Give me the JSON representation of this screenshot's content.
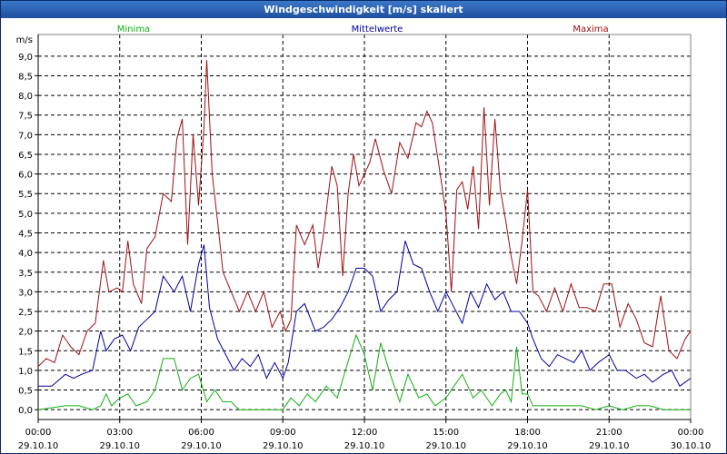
{
  "window": {
    "title": "Windgeschwindigkeit [m/s] skaliert"
  },
  "chart_data": {
    "type": "line",
    "title": "Windgeschwindigkeit [m/s] skaliert",
    "ylabel": "m/s",
    "ylim": [
      -0.25,
      9.25
    ],
    "xlim": [
      0,
      24
    ],
    "yticks": [
      "0,0",
      "0,5",
      "1,0",
      "1,5",
      "2,0",
      "2,5",
      "3,0",
      "3,5",
      "4,0",
      "4,5",
      "5,0",
      "5,5",
      "6,0",
      "6,5",
      "7,0",
      "7,5",
      "8,0",
      "8,5",
      "9,0"
    ],
    "xticks": [
      {
        "time": "00:00",
        "date": "29.10.10"
      },
      {
        "time": "03:00",
        "date": "29.10.10"
      },
      {
        "time": "06:00",
        "date": "29.10.10"
      },
      {
        "time": "09:00",
        "date": "29.10.10"
      },
      {
        "time": "12:00",
        "date": "29.10.10"
      },
      {
        "time": "15:00",
        "date": "29.10.10"
      },
      {
        "time": "18:00",
        "date": "29.10.10"
      },
      {
        "time": "21:00",
        "date": "29.10.10"
      },
      {
        "time": "00:00",
        "date": "30.10.10"
      }
    ],
    "legend": [
      {
        "name": "Minima",
        "color": "#10b010"
      },
      {
        "name": "Mittelwerte",
        "color": "#0000a0"
      },
      {
        "name": "Maxima",
        "color": "#a01010"
      }
    ],
    "series": [
      {
        "name": "Minima",
        "color": "#10b010",
        "points": [
          [
            0,
            0
          ],
          [
            1,
            0.1
          ],
          [
            1.5,
            0.1
          ],
          [
            2,
            0
          ],
          [
            2.3,
            0.1
          ],
          [
            2.5,
            0.4
          ],
          [
            2.7,
            0.1
          ],
          [
            3,
            0.3
          ],
          [
            3.3,
            0.4
          ],
          [
            3.6,
            0.1
          ],
          [
            4,
            0.2
          ],
          [
            4.3,
            0.5
          ],
          [
            4.6,
            1.3
          ],
          [
            5,
            1.3
          ],
          [
            5.3,
            0.5
          ],
          [
            5.6,
            0.8
          ],
          [
            5.9,
            0.9
          ],
          [
            6.2,
            0.2
          ],
          [
            6.5,
            0.5
          ],
          [
            6.8,
            0.2
          ],
          [
            7.1,
            0.2
          ],
          [
            7.4,
            0
          ],
          [
            8,
            0
          ],
          [
            8.5,
            0
          ],
          [
            9,
            0
          ],
          [
            9.3,
            0.3
          ],
          [
            9.6,
            0.1
          ],
          [
            9.9,
            0.4
          ],
          [
            10.2,
            0.2
          ],
          [
            10.6,
            0.6
          ],
          [
            11,
            0.3
          ],
          [
            11.3,
            1.0
          ],
          [
            11.7,
            1.9
          ],
          [
            12,
            1.4
          ],
          [
            12.3,
            0.5
          ],
          [
            12.6,
            1.7
          ],
          [
            13,
            0.8
          ],
          [
            13.3,
            0.2
          ],
          [
            13.6,
            0.9
          ],
          [
            14,
            0.3
          ],
          [
            14.3,
            0.4
          ],
          [
            14.6,
            0.1
          ],
          [
            15,
            0.3
          ],
          [
            15.3,
            0.6
          ],
          [
            15.6,
            0.9
          ],
          [
            16,
            0.3
          ],
          [
            16.3,
            0.5
          ],
          [
            16.7,
            0.1
          ],
          [
            17,
            0.4
          ],
          [
            17.2,
            0.5
          ],
          [
            17.4,
            0.2
          ],
          [
            17.6,
            1.6
          ],
          [
            17.8,
            0.4
          ],
          [
            18,
            0.4
          ],
          [
            18.2,
            0.1
          ],
          [
            19,
            0.1
          ],
          [
            20,
            0.1
          ],
          [
            20.5,
            0
          ],
          [
            21,
            0.1
          ],
          [
            21.5,
            0
          ],
          [
            22,
            0.1
          ],
          [
            22.5,
            0.1
          ],
          [
            23,
            0
          ],
          [
            23.5,
            0
          ],
          [
            24,
            0
          ]
        ]
      },
      {
        "name": "Mittelwerte",
        "color": "#0000a0",
        "points": [
          [
            0,
            0.6
          ],
          [
            0.5,
            0.6
          ],
          [
            1,
            0.9
          ],
          [
            1.3,
            0.8
          ],
          [
            1.6,
            0.9
          ],
          [
            2,
            1.0
          ],
          [
            2.3,
            2.0
          ],
          [
            2.5,
            1.5
          ],
          [
            2.8,
            1.8
          ],
          [
            3.1,
            1.9
          ],
          [
            3.4,
            1.5
          ],
          [
            3.7,
            2.1
          ],
          [
            4,
            2.3
          ],
          [
            4.3,
            2.5
          ],
          [
            4.6,
            3.4
          ],
          [
            5,
            3.0
          ],
          [
            5.3,
            3.4
          ],
          [
            5.6,
            2.5
          ],
          [
            5.9,
            3.7
          ],
          [
            6.1,
            4.2
          ],
          [
            6.3,
            2.6
          ],
          [
            6.6,
            1.8
          ],
          [
            6.9,
            1.4
          ],
          [
            7.2,
            1.0
          ],
          [
            7.5,
            1.3
          ],
          [
            7.8,
            1.1
          ],
          [
            8.1,
            1.4
          ],
          [
            8.4,
            0.8
          ],
          [
            8.7,
            1.2
          ],
          [
            9,
            0.8
          ],
          [
            9.2,
            1.2
          ],
          [
            9.5,
            2.5
          ],
          [
            9.8,
            2.7
          ],
          [
            10.2,
            2.0
          ],
          [
            10.5,
            2.1
          ],
          [
            10.8,
            2.3
          ],
          [
            11.1,
            2.6
          ],
          [
            11.4,
            3.0
          ],
          [
            11.7,
            3.6
          ],
          [
            12,
            3.6
          ],
          [
            12.3,
            3.4
          ],
          [
            12.6,
            2.5
          ],
          [
            12.9,
            2.8
          ],
          [
            13.2,
            3.0
          ],
          [
            13.5,
            4.3
          ],
          [
            13.8,
            3.7
          ],
          [
            14.1,
            3.6
          ],
          [
            14.4,
            3.0
          ],
          [
            14.7,
            2.5
          ],
          [
            15,
            3.0
          ],
          [
            15.3,
            2.6
          ],
          [
            15.6,
            2.2
          ],
          [
            15.9,
            3.0
          ],
          [
            16.2,
            2.6
          ],
          [
            16.5,
            3.2
          ],
          [
            16.8,
            2.8
          ],
          [
            17.1,
            3.0
          ],
          [
            17.4,
            2.5
          ],
          [
            17.7,
            2.5
          ],
          [
            18,
            2.2
          ],
          [
            18.2,
            1.8
          ],
          [
            18.5,
            1.3
          ],
          [
            18.8,
            1.1
          ],
          [
            19.1,
            1.4
          ],
          [
            19.4,
            1.3
          ],
          [
            19.7,
            1.2
          ],
          [
            20,
            1.5
          ],
          [
            20.3,
            1.0
          ],
          [
            20.6,
            1.2
          ],
          [
            21,
            1.4
          ],
          [
            21.3,
            1.0
          ],
          [
            21.6,
            1.0
          ],
          [
            22,
            0.8
          ],
          [
            22.3,
            0.9
          ],
          [
            22.6,
            0.7
          ],
          [
            23,
            0.9
          ],
          [
            23.3,
            1.0
          ],
          [
            23.6,
            0.6
          ],
          [
            24,
            0.8
          ]
        ]
      },
      {
        "name": "Maxima",
        "color": "#a01010",
        "points": [
          [
            0,
            1.1
          ],
          [
            0.3,
            1.3
          ],
          [
            0.6,
            1.2
          ],
          [
            0.9,
            1.9
          ],
          [
            1.2,
            1.6
          ],
          [
            1.5,
            1.4
          ],
          [
            1.8,
            2.0
          ],
          [
            2.1,
            2.2
          ],
          [
            2.4,
            3.8
          ],
          [
            2.6,
            3.0
          ],
          [
            2.9,
            3.1
          ],
          [
            3.1,
            3.0
          ],
          [
            3.3,
            4.3
          ],
          [
            3.5,
            3.2
          ],
          [
            3.8,
            2.7
          ],
          [
            4,
            4.1
          ],
          [
            4.3,
            4.4
          ],
          [
            4.6,
            5.5
          ],
          [
            4.9,
            5.3
          ],
          [
            5.1,
            6.9
          ],
          [
            5.3,
            7.4
          ],
          [
            5.5,
            4.2
          ],
          [
            5.7,
            7.0
          ],
          [
            5.9,
            5.2
          ],
          [
            6.1,
            7.2
          ],
          [
            6.2,
            8.9
          ],
          [
            6.4,
            6.0
          ],
          [
            6.6,
            4.8
          ],
          [
            6.8,
            3.5
          ],
          [
            7.1,
            3.0
          ],
          [
            7.4,
            2.5
          ],
          [
            7.7,
            3.0
          ],
          [
            8,
            2.5
          ],
          [
            8.3,
            3.0
          ],
          [
            8.6,
            2.1
          ],
          [
            8.9,
            2.5
          ],
          [
            9.1,
            2.0
          ],
          [
            9.3,
            2.3
          ],
          [
            9.5,
            4.7
          ],
          [
            9.8,
            4.2
          ],
          [
            10.1,
            4.7
          ],
          [
            10.3,
            3.6
          ],
          [
            10.5,
            4.5
          ],
          [
            10.8,
            6.2
          ],
          [
            11,
            5.7
          ],
          [
            11.2,
            3.4
          ],
          [
            11.4,
            5.5
          ],
          [
            11.6,
            6.5
          ],
          [
            11.8,
            5.7
          ],
          [
            12,
            6.0
          ],
          [
            12.2,
            6.3
          ],
          [
            12.4,
            6.9
          ],
          [
            12.7,
            6.1
          ],
          [
            13,
            5.5
          ],
          [
            13.3,
            6.8
          ],
          [
            13.6,
            6.4
          ],
          [
            13.9,
            7.3
          ],
          [
            14.1,
            7.2
          ],
          [
            14.3,
            7.6
          ],
          [
            14.5,
            7.3
          ],
          [
            14.7,
            6.4
          ],
          [
            15,
            5.0
          ],
          [
            15.2,
            3.0
          ],
          [
            15.4,
            5.6
          ],
          [
            15.6,
            5.8
          ],
          [
            15.8,
            5.1
          ],
          [
            16,
            6.2
          ],
          [
            16.2,
            4.6
          ],
          [
            16.4,
            7.7
          ],
          [
            16.6,
            5.2
          ],
          [
            16.8,
            7.4
          ],
          [
            17,
            5.6
          ],
          [
            17.2,
            4.8
          ],
          [
            17.4,
            3.9
          ],
          [
            17.6,
            3.2
          ],
          [
            17.8,
            4.3
          ],
          [
            18,
            5.6
          ],
          [
            18.2,
            3.0
          ],
          [
            18.4,
            2.9
          ],
          [
            18.7,
            2.5
          ],
          [
            19,
            3.1
          ],
          [
            19.3,
            2.5
          ],
          [
            19.6,
            3.2
          ],
          [
            19.9,
            2.6
          ],
          [
            20.2,
            2.6
          ],
          [
            20.5,
            2.5
          ],
          [
            20.8,
            3.2
          ],
          [
            21.1,
            3.2
          ],
          [
            21.4,
            2.1
          ],
          [
            21.7,
            2.7
          ],
          [
            22,
            2.3
          ],
          [
            22.3,
            1.7
          ],
          [
            22.6,
            1.6
          ],
          [
            22.9,
            2.9
          ],
          [
            23.2,
            1.5
          ],
          [
            23.5,
            1.3
          ],
          [
            23.8,
            1.8
          ],
          [
            24,
            2.0
          ]
        ]
      }
    ]
  }
}
